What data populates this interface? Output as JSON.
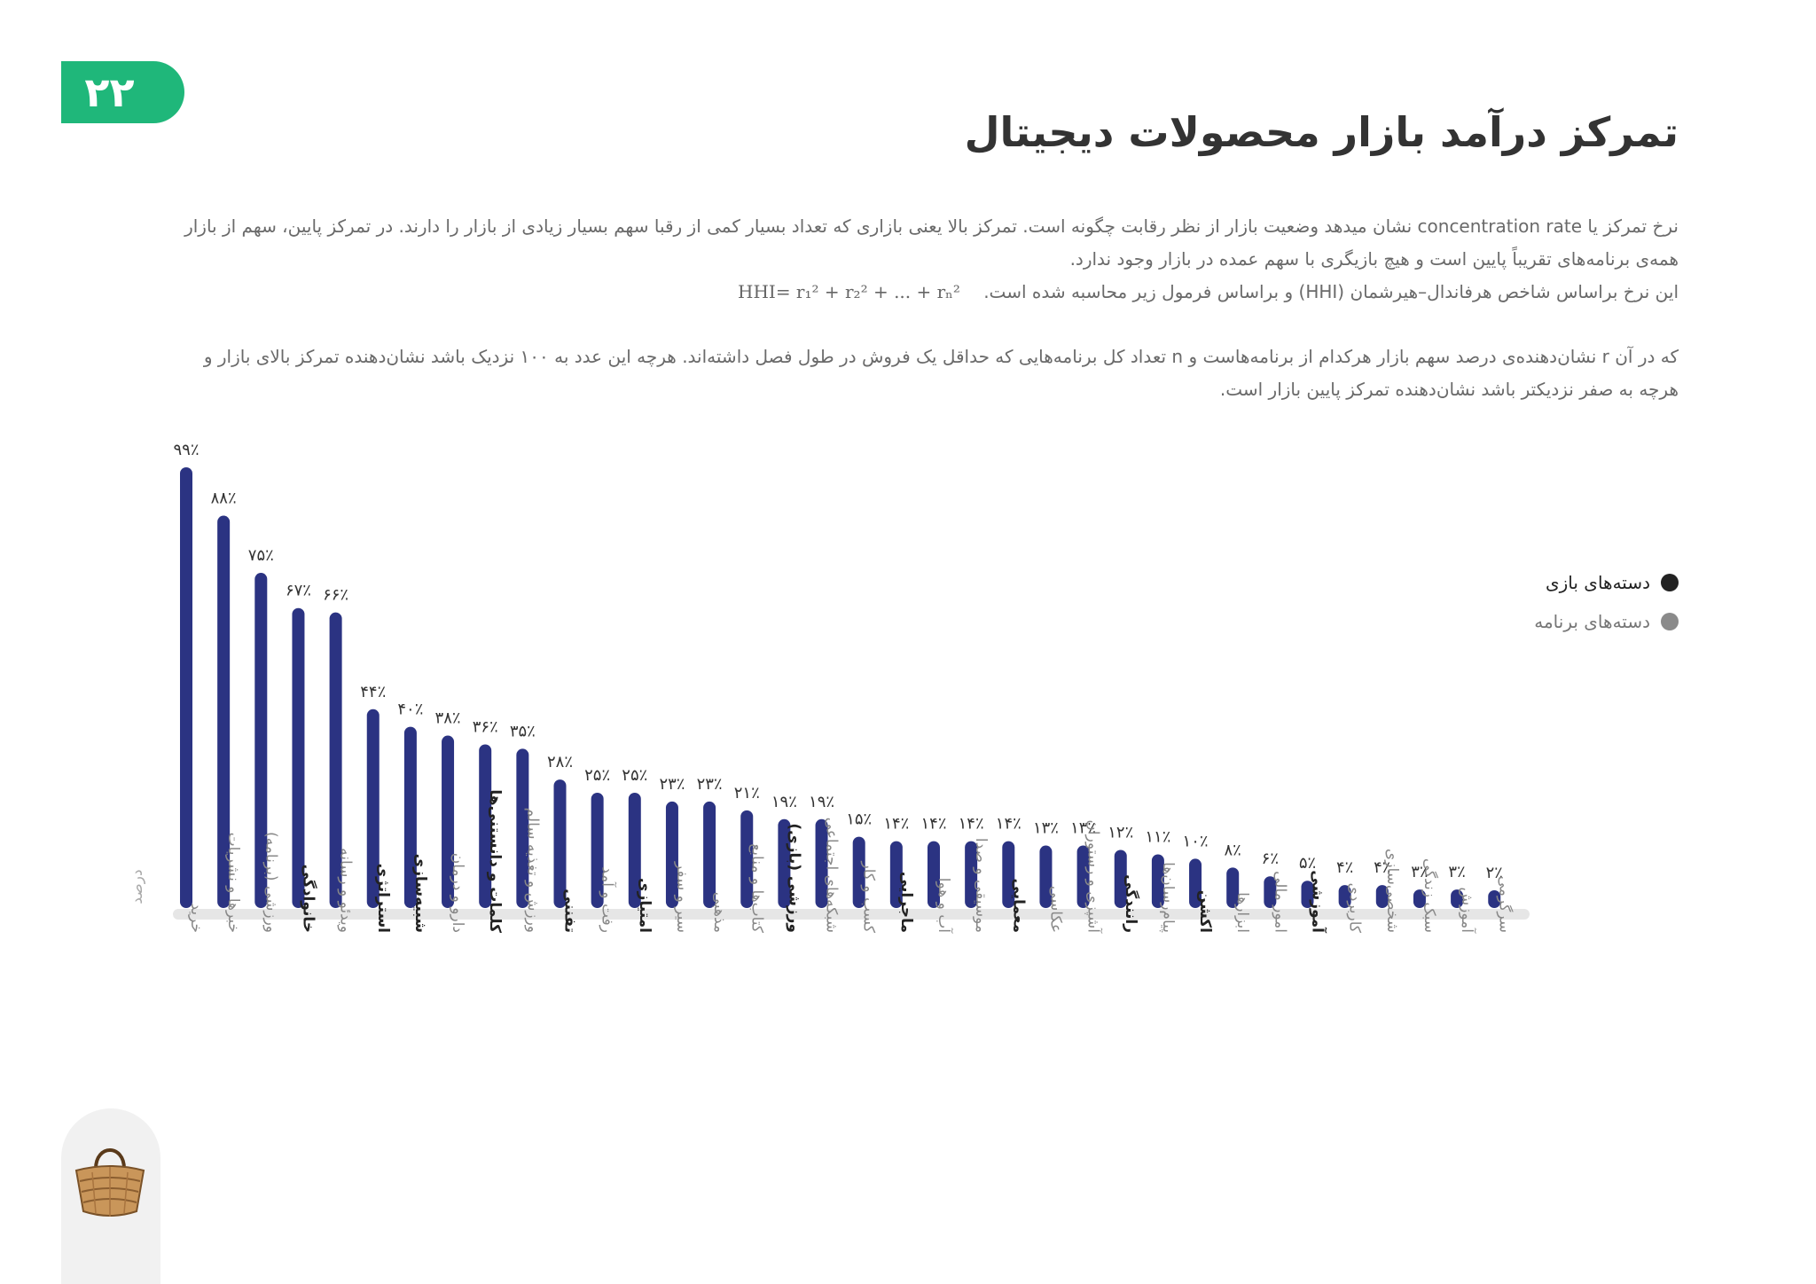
{
  "page_number": "۲۲",
  "title": "تمرکز درآمد بازار محصولات دیجیتال",
  "description": {
    "para1": "نرخ تمرکز یا concentration rate نشان میدهد وضعیت بازار از نظر رقابت چگونه است. تمرکز بالا یعنی بازاری که تعداد بسیار کمی از رقبا سهم بسیار زیادی از بازار را دارند. در تمرکز پایین، سهم از بازار همه‌ی برنامه‌های تقریباً پایین است و هیچ بازیگری با سهم عمده در بازار وجود ندارد.",
    "para2": "این نرخ براساس شاخص هرفاندال–هیرشمان (HHI) و براساس فرمول زیر محاسبه شده است.",
    "formula": "HHI= r₁² + r₂² + ... + rₙ²",
    "para3": "که در آن r نشان‌دهنده‌ی درصد سهم بازار هرکدام از برنامه‌هاست و n تعداد کل برنامه‌هایی که حداقل یک فروش در طول فصل داشته‌اند. هرچه این عدد به ۱۰۰ نزدیک باشد نشان‌دهنده تمرکز بالای بازار و هرچه به صفر نزدیکتر باشد نشان‌دهنده تمرکز پایین بازار است."
  },
  "legend": [
    {
      "label": "دسته‌های بازی",
      "color": "#222222"
    },
    {
      "label": "دسته‌های برنامه",
      "color": "#8a8a8a"
    }
  ],
  "colors": {
    "bar": "#2b3382",
    "baseline": "#e6e6e6",
    "accent": "#1fb77a"
  },
  "icon": "basket-icon",
  "chart_data": {
    "type": "bar",
    "ylabel": "درصد",
    "ylim": [
      0,
      100
    ],
    "grid": false,
    "legend_position": "right",
    "categories": [
      "خرید",
      "خبرها و نشریات",
      "ورزشی (برنامه)",
      "خانوادگی",
      "ویدئو و رسانه",
      "استراتژی",
      "شبیه‌سازی",
      "دارو و درمان",
      "کلمات و دانستنی‌ها",
      "ورزش و تغذیه سالم",
      "تفننی",
      "رفت و آمد",
      "امتیازی",
      "سیر و سفر",
      "مذهبی",
      "کتاب‌ها و منابع",
      "ورزشی (بازی)",
      "شبکه‌های اجتماعی",
      "کسب و کار",
      "ماجرایی",
      "آب و هوا",
      "موسیقی و صدا",
      "معمایی",
      "عکاسی",
      "آشپزی و رستوران",
      "رانندگی",
      "پیام‌رسان‌ها",
      "اکشن",
      "ابزارها",
      "امور مالی",
      "آموزشی",
      "کاربردی",
      "شخصی‌سازی",
      "سبک زندگی",
      "آموزش",
      "سرگرمی"
    ],
    "category_group": [
      "app",
      "app",
      "app",
      "game",
      "app",
      "game",
      "game",
      "app",
      "game",
      "app",
      "game",
      "app",
      "game",
      "app",
      "app",
      "app",
      "game",
      "app",
      "app",
      "game",
      "app",
      "app",
      "game",
      "app",
      "app",
      "game",
      "app",
      "game",
      "app",
      "app",
      "game",
      "app",
      "app",
      "app",
      "app",
      "app"
    ],
    "values": [
      99,
      88,
      75,
      67,
      66,
      44,
      40,
      38,
      36,
      35,
      28,
      25,
      25,
      23,
      23,
      21,
      19,
      19,
      15,
      14,
      14,
      14,
      14,
      13,
      13,
      12,
      11,
      10,
      8,
      6,
      5,
      4,
      4,
      3,
      3,
      2
    ],
    "value_labels": [
      "۹۹٪",
      "۸۸٪",
      "۷۵٪",
      "۶۷٪",
      "۶۶٪",
      "۴۴٪",
      "۴۰٪",
      "۳۸٪",
      "۳۶٪",
      "۳۵٪",
      "۲۸٪",
      "۲۵٪",
      "۲۵٪",
      "۲۳٪",
      "۲۳٪",
      "۲۱٪",
      "۱۹٪",
      "۱۹٪",
      "۱۵٪",
      "۱۴٪",
      "۱۴٪",
      "۱۴٪",
      "۱۴٪",
      "۱۳٪",
      "۱۳٪",
      "۱۲٪",
      "۱۱٪",
      "۱۰٪",
      "۸٪",
      "۶٪",
      "۵٪",
      "۴٪",
      "۴٪",
      "۳٪",
      "۳٪",
      "۲٪"
    ]
  }
}
